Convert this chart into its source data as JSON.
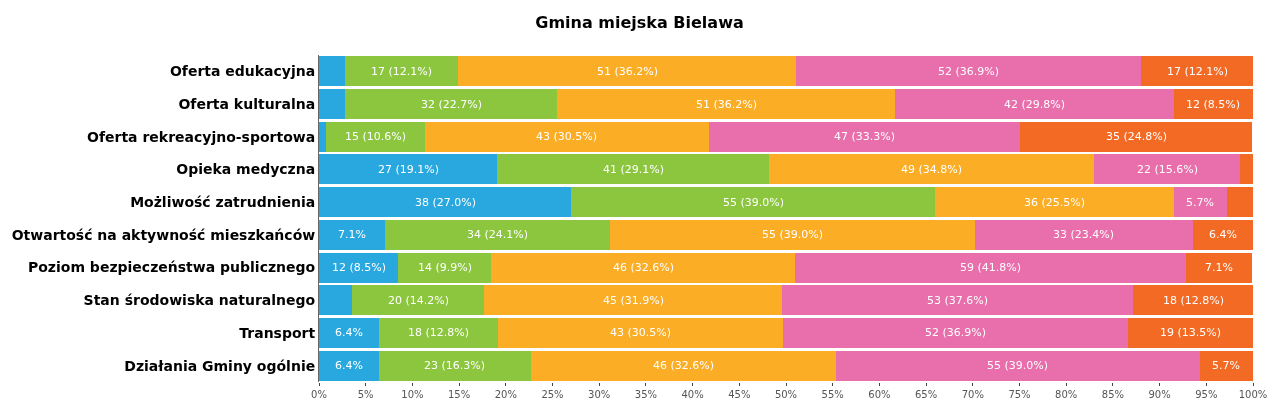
{
  "chart_data": {
    "type": "bar",
    "orientation": "horizontal",
    "stacked": true,
    "title": "Gmina miejska Bielawa",
    "categories": [
      "Oferta edukacyjna",
      "Oferta kulturalna",
      "Oferta rekreacyjno-sportowa",
      "Opieka medyczna",
      "Możliwość zatrudnienia",
      "Otwartość na aktywność mieszkańców",
      "Poziom bezpieczeństwa publicznego",
      "Stan środowiska naturalnego",
      "Transport",
      "Działania Gminy ogólnie"
    ],
    "series": [
      {
        "color": "#29a8e0",
        "values": [
          2.8,
          2.8,
          0.7,
          19.1,
          27.0,
          7.1,
          8.5,
          3.5,
          6.4,
          6.4
        ],
        "value_labels": [
          null,
          null,
          null,
          "27 (19.1%)",
          "38 (27.0%)",
          "7.1%",
          "12 (8.5%)",
          null,
          "6.4%",
          "6.4%"
        ]
      },
      {
        "color": "#8cc63f",
        "values": [
          12.1,
          22.7,
          10.6,
          29.1,
          39.0,
          24.1,
          9.9,
          14.2,
          12.8,
          16.3
        ],
        "value_labels": [
          "17 (12.1%)",
          "32 (22.7%)",
          "15 (10.6%)",
          "41 (29.1%)",
          "55 (39.0%)",
          "34 (24.1%)",
          "14 (9.9%)",
          "20 (14.2%)",
          "18 (12.8%)",
          "23 (16.3%)"
        ]
      },
      {
        "color": "#fbad26",
        "values": [
          36.2,
          36.2,
          30.5,
          34.8,
          25.5,
          39.0,
          32.6,
          31.9,
          30.5,
          32.6
        ],
        "value_labels": [
          "51 (36.2%)",
          "51 (36.2%)",
          "43 (30.5%)",
          "49 (34.8%)",
          "36 (25.5%)",
          "55 (39.0%)",
          "46 (32.6%)",
          "45 (31.9%)",
          "43 (30.5%)",
          "46 (32.6%)"
        ]
      },
      {
        "color": "#e86fab",
        "values": [
          36.9,
          29.8,
          33.3,
          15.6,
          5.7,
          23.4,
          41.8,
          37.6,
          36.9,
          39.0
        ],
        "value_labels": [
          "52 (36.9%)",
          "42 (29.8%)",
          "47 (33.3%)",
          "22 (15.6%)",
          "5.7%",
          "33 (23.4%)",
          "59 (41.8%)",
          "53 (37.6%)",
          "52 (36.9%)",
          "55 (39.0%)"
        ]
      },
      {
        "color": "#f26a24",
        "values": [
          12.1,
          8.5,
          24.8,
          1.4,
          2.8,
          6.4,
          7.1,
          12.8,
          13.5,
          5.7
        ],
        "value_labels": [
          "17 (12.1%)",
          "12 (8.5%)",
          "35 (24.8%)",
          null,
          null,
          "6.4%",
          "7.1%",
          "18 (12.8%)",
          "19 (13.5%)",
          "5.7%"
        ]
      }
    ],
    "xlim": [
      0,
      100
    ],
    "xticks": [
      {
        "value": 0,
        "label": "0%"
      },
      {
        "value": 5,
        "label": "5%"
      },
      {
        "value": 10,
        "label": "10%"
      },
      {
        "value": 15,
        "label": "15%"
      },
      {
        "value": 20,
        "label": "20%"
      },
      {
        "value": 25,
        "label": "25%"
      },
      {
        "value": 30,
        "label": "30%"
      },
      {
        "value": 35,
        "label": "35%"
      },
      {
        "value": 40,
        "label": "40%"
      },
      {
        "value": 45,
        "label": "45%"
      },
      {
        "value": 50,
        "label": "50%"
      },
      {
        "value": 55,
        "label": "55%"
      },
      {
        "value": 60,
        "label": "60%"
      },
      {
        "value": 65,
        "label": "65%"
      },
      {
        "value": 70,
        "label": "70%"
      },
      {
        "value": 75,
        "label": "75%"
      },
      {
        "value": 80,
        "label": "80%"
      },
      {
        "value": 85,
        "label": "85%"
      },
      {
        "value": 90,
        "label": "90%"
      },
      {
        "value": 95,
        "label": "95%"
      },
      {
        "value": 100,
        "label": "100%"
      }
    ],
    "data_labels": false
  }
}
